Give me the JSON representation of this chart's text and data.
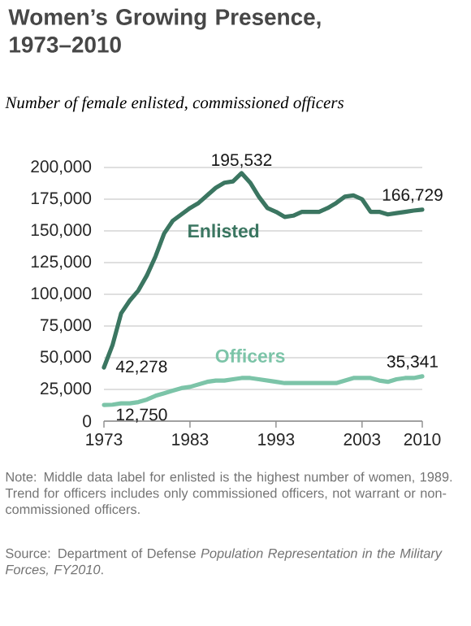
{
  "chart_data": {
    "type": "line",
    "title": "Women’s Growing Presence, 1973–2010",
    "subtitle": "Number of female enlisted, commissioned officers",
    "x": [
      1973,
      1974,
      1975,
      1976,
      1977,
      1978,
      1979,
      1980,
      1981,
      1982,
      1983,
      1984,
      1985,
      1986,
      1987,
      1988,
      1989,
      1990,
      1991,
      1992,
      1993,
      1994,
      1995,
      1996,
      1997,
      1998,
      1999,
      2000,
      2001,
      2002,
      2003,
      2004,
      2005,
      2006,
      2007,
      2008,
      2009,
      2010
    ],
    "series": [
      {
        "name": "Enlisted",
        "color": "#3b7661",
        "values": [
          42278,
          60000,
          85000,
          95000,
          103000,
          115000,
          130000,
          148000,
          158000,
          163000,
          168000,
          172000,
          178000,
          184000,
          188000,
          189000,
          195532,
          188000,
          177000,
          168000,
          165000,
          161000,
          162000,
          165000,
          165000,
          165000,
          168000,
          172000,
          177000,
          178000,
          175000,
          165000,
          165000,
          163000,
          164000,
          165000,
          166000,
          166729
        ],
        "value_labels": [
          "42,278",
          null,
          null,
          null,
          null,
          null,
          null,
          null,
          null,
          null,
          null,
          null,
          null,
          null,
          null,
          null,
          "195,532",
          null,
          null,
          null,
          null,
          null,
          null,
          null,
          null,
          null,
          null,
          null,
          null,
          null,
          null,
          null,
          null,
          null,
          null,
          null,
          null,
          "166,729"
        ]
      },
      {
        "name": "Officers",
        "color": "#7cc4a8",
        "values": [
          12750,
          13000,
          14000,
          14000,
          15000,
          17000,
          20000,
          22000,
          24000,
          26000,
          27000,
          29000,
          31000,
          32000,
          32000,
          33000,
          34000,
          34000,
          33000,
          32000,
          31000,
          30000,
          30000,
          30000,
          30000,
          30000,
          30000,
          30000,
          32000,
          34000,
          34000,
          34000,
          32000,
          31000,
          33000,
          34000,
          34000,
          35341
        ],
        "value_labels": [
          "12,750",
          null,
          null,
          null,
          null,
          null,
          null,
          null,
          null,
          null,
          null,
          null,
          null,
          null,
          null,
          null,
          null,
          null,
          null,
          null,
          null,
          null,
          null,
          null,
          null,
          null,
          null,
          null,
          null,
          null,
          null,
          null,
          null,
          null,
          null,
          null,
          null,
          "35,341"
        ]
      }
    ],
    "xlim": [
      1973,
      2010
    ],
    "xticks": [
      1973,
      1983,
      1993,
      2003,
      2010
    ],
    "ylim": [
      0,
      200000
    ],
    "yticks": [
      {
        "value": 0,
        "label": "0"
      },
      {
        "value": 25000,
        "label": "25,000"
      },
      {
        "value": 50000,
        "label": "50,000"
      },
      {
        "value": 75000,
        "label": "75,000"
      },
      {
        "value": 100000,
        "label": "100,000"
      },
      {
        "value": 125000,
        "label": "125,000"
      },
      {
        "value": 150000,
        "label": "150,000"
      },
      {
        "value": 175000,
        "label": "175,000"
      },
      {
        "value": 200000,
        "label": "200,000"
      }
    ],
    "grid": "y",
    "annotations": [
      "Note: Middle data label for enlisted is the highest number of women, 1989. Trend for officers includes only commissioned officers, not warrant or non-commissioned officers.",
      "Source: Department of Defense *Population Representation in the Military Forces, FY2010*."
    ]
  }
}
